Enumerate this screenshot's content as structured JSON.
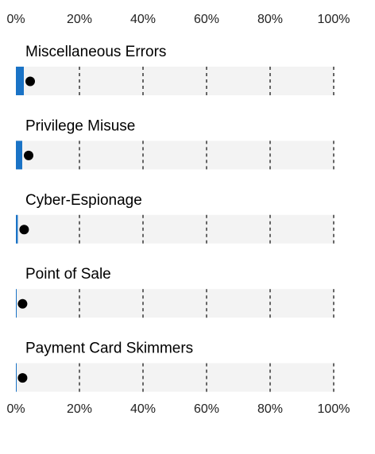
{
  "chart_data": {
    "type": "bar",
    "orientation": "horizontal",
    "x_ticks": [
      "0%",
      "20%",
      "40%",
      "60%",
      "80%",
      "100%"
    ],
    "xlim": [
      0,
      100
    ],
    "grid": true,
    "categories": [
      "Miscellaneous Errors",
      "Privilege Misuse",
      "Cyber-Espionage",
      "Point of Sale",
      "Payment Card Skimmers"
    ],
    "values": [
      2.5,
      2,
      0.6,
      0.1,
      0.1
    ],
    "points": [
      2.5,
      2,
      0.6,
      0.1,
      0.1
    ],
    "colors": {
      "bar": "#1a73c6",
      "track": "#f3f3f3",
      "point": "#000000",
      "grid": "#666666"
    }
  }
}
